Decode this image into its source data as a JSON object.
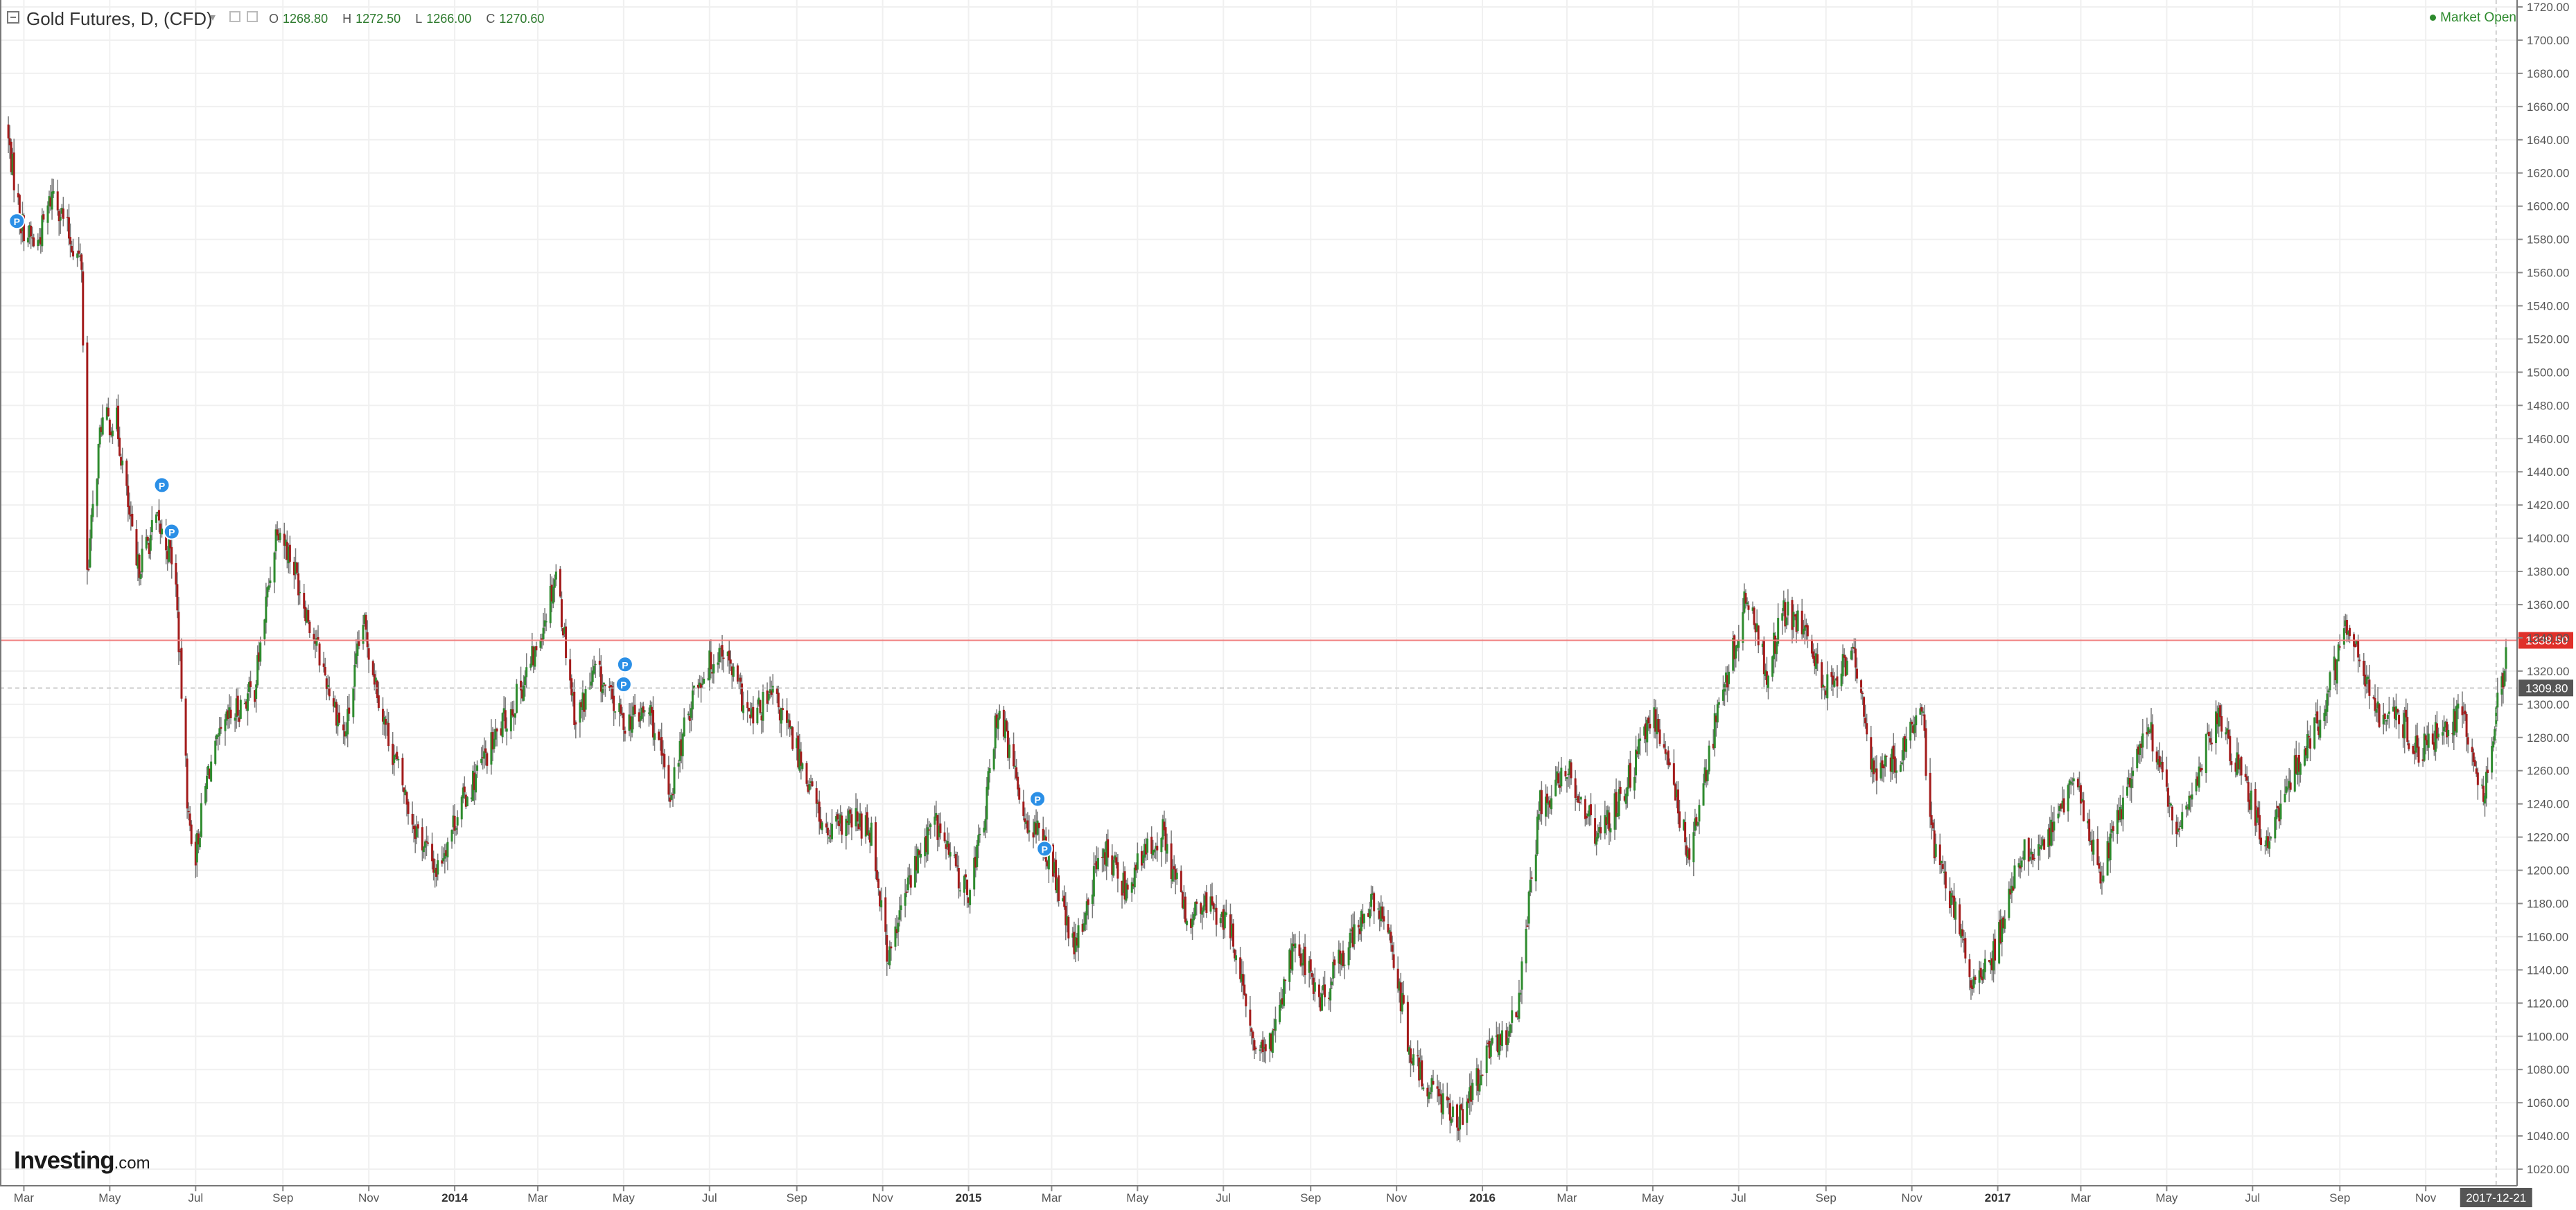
{
  "header": {
    "title": "Gold Futures, D, (CFD)",
    "ohlc": [
      {
        "label": "O",
        "value": "1268.80"
      },
      {
        "label": "H",
        "value": "1272.50"
      },
      {
        "label": "L",
        "value": "1266.00"
      },
      {
        "label": "C",
        "value": "1270.60"
      }
    ],
    "market_status": "Market Open"
  },
  "logo": {
    "name": "Investing",
    "suffix": ".com"
  },
  "colors": {
    "up": "#2e8b2e",
    "down": "#a31b1b",
    "wick": "#7a7a7a",
    "grid": "#f0f0f0",
    "price_line": "#f08080",
    "price_badge": "#e0302a",
    "crosshair_badge": "#555555",
    "marker": "#2b8fe6",
    "market": "#2d8a2d"
  },
  "chart_data": {
    "type": "candlestick",
    "title": "Gold Futures, D, (CFD)",
    "ylim": [
      1010,
      1720
    ],
    "y_ticks": [
      "1720.00",
      "1700.00",
      "1680.00",
      "1660.00",
      "1640.00",
      "1620.00",
      "1600.00",
      "1580.00",
      "1560.00",
      "1540.00",
      "1520.00",
      "1500.00",
      "1480.00",
      "1460.00",
      "1440.00",
      "1420.00",
      "1400.00",
      "1380.00",
      "1360.00",
      "1340.00",
      "1320.00",
      "1300.00",
      "1280.00",
      "1260.00",
      "1240.00",
      "1220.00",
      "1200.00",
      "1180.00",
      "1160.00",
      "1140.00",
      "1120.00",
      "1100.00",
      "1080.00",
      "1060.00",
      "1040.00",
      "1020.00"
    ],
    "x_ticks": [
      {
        "label": "Mar",
        "date": "2013-03-01",
        "bold": false
      },
      {
        "label": "May",
        "date": "2013-05-01",
        "bold": false
      },
      {
        "label": "Jul",
        "date": "2013-07-01",
        "bold": false
      },
      {
        "label": "Sep",
        "date": "2013-09-01",
        "bold": false
      },
      {
        "label": "Nov",
        "date": "2013-11-01",
        "bold": false
      },
      {
        "label": "2014",
        "date": "2014-01-01",
        "bold": true
      },
      {
        "label": "Mar",
        "date": "2014-03-01",
        "bold": false
      },
      {
        "label": "May",
        "date": "2014-05-01",
        "bold": false
      },
      {
        "label": "Jul",
        "date": "2014-07-01",
        "bold": false
      },
      {
        "label": "Sep",
        "date": "2014-09-01",
        "bold": false
      },
      {
        "label": "Nov",
        "date": "2014-11-01",
        "bold": false
      },
      {
        "label": "2015",
        "date": "2015-01-01",
        "bold": true
      },
      {
        "label": "Mar",
        "date": "2015-03-01",
        "bold": false
      },
      {
        "label": "May",
        "date": "2015-05-01",
        "bold": false
      },
      {
        "label": "Jul",
        "date": "2015-07-01",
        "bold": false
      },
      {
        "label": "Sep",
        "date": "2015-09-01",
        "bold": false
      },
      {
        "label": "Nov",
        "date": "2015-11-01",
        "bold": false
      },
      {
        "label": "2016",
        "date": "2016-01-01",
        "bold": true
      },
      {
        "label": "Mar",
        "date": "2016-03-01",
        "bold": false
      },
      {
        "label": "May",
        "date": "2016-05-01",
        "bold": false
      },
      {
        "label": "Jul",
        "date": "2016-07-01",
        "bold": false
      },
      {
        "label": "Sep",
        "date": "2016-09-01",
        "bold": false
      },
      {
        "label": "Nov",
        "date": "2016-11-01",
        "bold": false
      },
      {
        "label": "2017",
        "date": "2017-01-01",
        "bold": true
      },
      {
        "label": "Mar",
        "date": "2017-03-01",
        "bold": false
      },
      {
        "label": "May",
        "date": "2017-05-01",
        "bold": false
      },
      {
        "label": "Jul",
        "date": "2017-07-01",
        "bold": false
      },
      {
        "label": "Sep",
        "date": "2017-09-01",
        "bold": false
      },
      {
        "label": "Nov",
        "date": "2017-11-01",
        "bold": false
      }
    ],
    "x_range": [
      "2013-02-15",
      "2017-12-29"
    ],
    "current_price": {
      "value": 1338.5,
      "label": "1338.50"
    },
    "crosshair": {
      "value": 1309.8,
      "label": "1309.80",
      "date": "2017-12-21",
      "date_label": "2017-12-21"
    },
    "markers": [
      {
        "date": "2013-02-24",
        "price": 1591,
        "label": "P"
      },
      {
        "date": "2013-06-07",
        "price": 1432,
        "label": "P"
      },
      {
        "date": "2013-06-14",
        "price": 1404,
        "label": "P"
      },
      {
        "date": "2014-05-02",
        "price": 1324,
        "label": "P"
      },
      {
        "date": "2014-05-01",
        "price": 1312,
        "label": "P"
      },
      {
        "date": "2015-02-19",
        "price": 1243,
        "label": "P"
      },
      {
        "date": "2015-02-24",
        "price": 1213,
        "label": "P"
      }
    ],
    "price_path": [
      [
        "2013-02-16",
        1650
      ],
      [
        "2013-02-27",
        1590
      ],
      [
        "2013-03-10",
        1575
      ],
      [
        "2013-03-22",
        1610
      ],
      [
        "2013-04-03",
        1580
      ],
      [
        "2013-04-11",
        1565
      ],
      [
        "2013-04-15",
        1380
      ],
      [
        "2013-04-25",
        1470
      ],
      [
        "2013-05-06",
        1470
      ],
      [
        "2013-05-20",
        1380
      ],
      [
        "2013-06-03",
        1410
      ],
      [
        "2013-06-16",
        1385
      ],
      [
        "2013-06-26",
        1230
      ],
      [
        "2013-07-01",
        1210
      ],
      [
        "2013-07-10",
        1260
      ],
      [
        "2013-07-24",
        1290
      ],
      [
        "2013-08-12",
        1310
      ],
      [
        "2013-08-28",
        1410
      ],
      [
        "2013-09-10",
        1380
      ],
      [
        "2013-09-30",
        1320
      ],
      [
        "2013-10-15",
        1280
      ],
      [
        "2013-10-28",
        1350
      ],
      [
        "2013-11-12",
        1290
      ],
      [
        "2013-12-02",
        1230
      ],
      [
        "2013-12-19",
        1200
      ],
      [
        "2014-01-03",
        1235
      ],
      [
        "2014-01-24",
        1270
      ],
      [
        "2014-02-12",
        1300
      ],
      [
        "2014-02-27",
        1330
      ],
      [
        "2014-03-14",
        1380
      ],
      [
        "2014-03-28",
        1290
      ],
      [
        "2014-04-11",
        1320
      ],
      [
        "2014-04-30",
        1290
      ],
      [
        "2014-05-20",
        1295
      ],
      [
        "2014-06-03",
        1245
      ],
      [
        "2014-06-20",
        1310
      ],
      [
        "2014-07-10",
        1335
      ],
      [
        "2014-07-30",
        1290
      ],
      [
        "2014-08-15",
        1305
      ],
      [
        "2014-09-05",
        1265
      ],
      [
        "2014-09-22",
        1220
      ],
      [
        "2014-10-10",
        1230
      ],
      [
        "2014-10-24",
        1225
      ],
      [
        "2014-11-05",
        1145
      ],
      [
        "2014-11-20",
        1195
      ],
      [
        "2014-12-08",
        1230
      ],
      [
        "2014-12-31",
        1185
      ],
      [
        "2015-01-12",
        1230
      ],
      [
        "2015-01-22",
        1300
      ],
      [
        "2015-02-09",
        1235
      ],
      [
        "2015-02-27",
        1210
      ],
      [
        "2015-03-17",
        1150
      ],
      [
        "2015-04-06",
        1215
      ],
      [
        "2015-04-22",
        1190
      ],
      [
        "2015-05-18",
        1225
      ],
      [
        "2015-06-05",
        1170
      ],
      [
        "2015-06-22",
        1180
      ],
      [
        "2015-07-08",
        1160
      ],
      [
        "2015-07-20",
        1100
      ],
      [
        "2015-07-31",
        1085
      ],
      [
        "2015-08-21",
        1160
      ],
      [
        "2015-09-08",
        1120
      ],
      [
        "2015-09-24",
        1150
      ],
      [
        "2015-10-14",
        1180
      ],
      [
        "2015-10-28",
        1160
      ],
      [
        "2015-11-11",
        1085
      ],
      [
        "2015-11-30",
        1065
      ],
      [
        "2015-12-17",
        1050
      ],
      [
        "2016-01-06",
        1090
      ],
      [
        "2016-01-25",
        1110
      ],
      [
        "2016-02-11",
        1240
      ],
      [
        "2016-03-03",
        1260
      ],
      [
        "2016-03-23",
        1220
      ],
      [
        "2016-04-12",
        1250
      ],
      [
        "2016-05-02",
        1295
      ],
      [
        "2016-05-27",
        1210
      ],
      [
        "2016-06-15",
        1290
      ],
      [
        "2016-06-24",
        1320
      ],
      [
        "2016-07-06",
        1365
      ],
      [
        "2016-07-21",
        1320
      ],
      [
        "2016-08-02",
        1355
      ],
      [
        "2016-08-16",
        1345
      ],
      [
        "2016-09-01",
        1310
      ],
      [
        "2016-09-20",
        1330
      ],
      [
        "2016-10-05",
        1260
      ],
      [
        "2016-10-25",
        1270
      ],
      [
        "2016-11-08",
        1300
      ],
      [
        "2016-11-15",
        1220
      ],
      [
        "2016-12-02",
        1175
      ],
      [
        "2016-12-15",
        1130
      ],
      [
        "2016-12-30",
        1150
      ],
      [
        "2017-01-16",
        1210
      ],
      [
        "2017-02-01",
        1210
      ],
      [
        "2017-02-24",
        1255
      ],
      [
        "2017-03-15",
        1200
      ],
      [
        "2017-04-05",
        1255
      ],
      [
        "2017-04-17",
        1290
      ],
      [
        "2017-05-09",
        1220
      ],
      [
        "2017-06-06",
        1295
      ],
      [
        "2017-06-30",
        1240
      ],
      [
        "2017-07-10",
        1210
      ],
      [
        "2017-08-01",
        1265
      ],
      [
        "2017-08-17",
        1290
      ],
      [
        "2017-09-08",
        1350
      ],
      [
        "2017-09-25",
        1295
      ],
      [
        "2017-10-12",
        1295
      ],
      [
        "2017-10-27",
        1270
      ],
      [
        "2017-11-13",
        1285
      ],
      [
        "2017-11-27",
        1295
      ],
      [
        "2017-12-12",
        1245
      ],
      [
        "2017-12-22",
        1300
      ],
      [
        "2017-12-29",
        1330
      ]
    ]
  }
}
